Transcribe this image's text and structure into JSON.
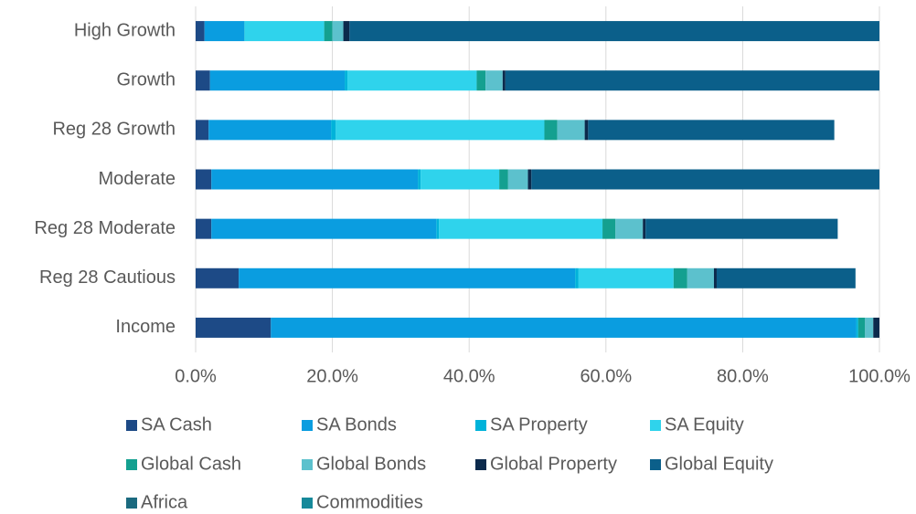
{
  "chart_data": {
    "type": "stacked-bar-horizontal",
    "categories": [
      "High Growth",
      "Growth",
      "Reg 28 Growth",
      "Moderate",
      "Reg 28 Moderate",
      "Reg 28 Cautious",
      "Income"
    ],
    "series": [
      {
        "name": "SA Cash",
        "color": "#1d4a86",
        "values": [
          1.3,
          2.1,
          1.9,
          2.3,
          2.3,
          6.3,
          11.0
        ]
      },
      {
        "name": "SA Bonds",
        "color": "#0a9de0",
        "values": [
          5.8,
          19.7,
          17.9,
          30.2,
          32.9,
          49.2,
          85.6
        ]
      },
      {
        "name": "SA Property",
        "color": "#00b3da",
        "values": [
          0.1,
          0.4,
          0.7,
          0.4,
          0.4,
          0.5,
          0.3
        ]
      },
      {
        "name": "SA Equity",
        "color": "#2fd3ec",
        "values": [
          11.6,
          18.9,
          30.5,
          11.5,
          23.9,
          13.9,
          0
        ]
      },
      {
        "name": "Global Cash",
        "color": "#14a090",
        "values": [
          1.2,
          1.3,
          1.9,
          1.3,
          1.9,
          2.0,
          1.0
        ]
      },
      {
        "name": "Global Bonds",
        "color": "#5cc1cd",
        "values": [
          1.6,
          2.5,
          4.0,
          2.9,
          4.0,
          3.9,
          1.2
        ]
      },
      {
        "name": "Global Property",
        "color": "#0c2a4c",
        "values": [
          0.9,
          0.4,
          0.5,
          0.5,
          0.4,
          0.4,
          0.9
        ]
      },
      {
        "name": "Global Equity",
        "color": "#0b5f8a",
        "values": [
          77.5,
          54.7,
          36.0,
          50.9,
          28.1,
          20.3,
          0
        ]
      },
      {
        "name": "Africa",
        "color": "#1b6a7f",
        "values": [
          0,
          0,
          0,
          0,
          0,
          0,
          0
        ]
      },
      {
        "name": "Commodities",
        "color": "#16899a",
        "values": [
          0,
          0,
          0,
          0,
          0,
          0,
          0
        ]
      }
    ],
    "xlim": [
      0,
      100
    ],
    "xticks": [
      {
        "value": 0,
        "label": "0.0%"
      },
      {
        "value": 20,
        "label": "20.0%"
      },
      {
        "value": 40,
        "label": "40.0%"
      },
      {
        "value": 60,
        "label": "60.0%"
      },
      {
        "value": 80,
        "label": "80.0%"
      },
      {
        "value": 100,
        "label": "100.0%"
      }
    ],
    "grid": true,
    "legend": "bottom"
  }
}
